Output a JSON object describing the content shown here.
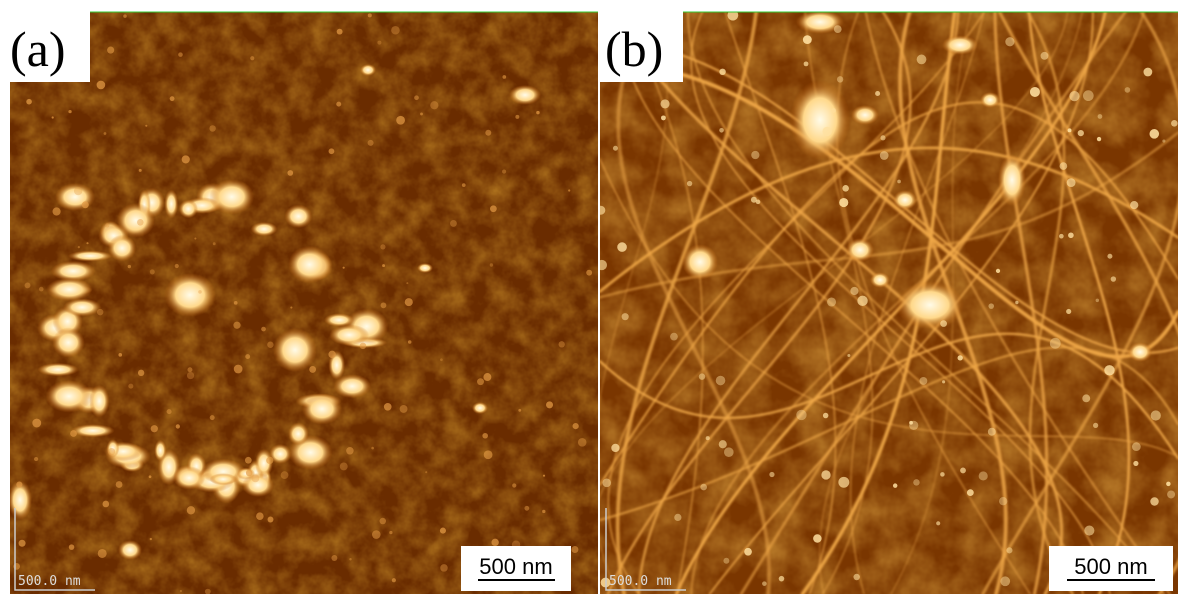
{
  "panels": [
    {
      "label": "(a)",
      "scale_bar": "500 nm",
      "corner_text": "500.0 nm"
    },
    {
      "label": "(b)",
      "scale_bar": "500 nm",
      "corner_text": "500.0 nm"
    }
  ]
}
